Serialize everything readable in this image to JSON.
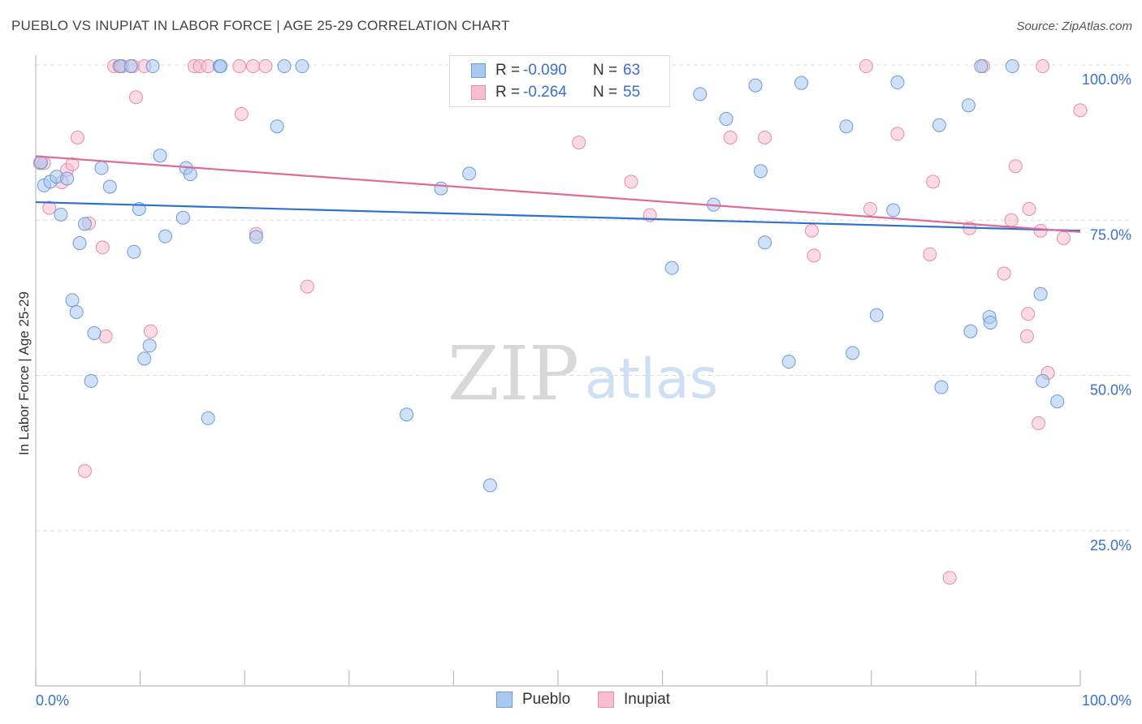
{
  "header": {
    "title": "PUEBLO VS INUPIAT IN LABOR FORCE | AGE 25-29 CORRELATION CHART",
    "source": "Source: ZipAtlas.com"
  },
  "legend": {
    "rows": [
      {
        "r_label": "R =",
        "r_value": "-0.090",
        "n_label": "N =",
        "n_value": "63"
      },
      {
        "r_label": "R =",
        "r_value": "-0.264",
        "n_label": "N =",
        "n_value": "55"
      }
    ]
  },
  "bottom_legend": [
    "Pueblo",
    "Inupiat"
  ],
  "watermark": {
    "zip": "ZIP",
    "atlas": "atlas"
  },
  "colors": {
    "pueblo_fill": "#a9c8f0",
    "pueblo_stroke": "#6a9ad8",
    "pueblo_line": "#2f72cc",
    "inupiat_fill": "#f6bed0",
    "inupiat_stroke": "#e88aa8",
    "inupiat_line": "#e06a96",
    "tick_label": "#3b6fd0",
    "grid": "#dddddd"
  },
  "chart_data": {
    "type": "scatter",
    "title": "PUEBLO VS INUPIAT IN LABOR FORCE | AGE 25-29 CORRELATION CHART",
    "xlabel": "",
    "ylabel": "In Labor Force | Age 25-29",
    "xlim": [
      0,
      100
    ],
    "ylim": [
      0,
      100
    ],
    "x_tick_labels": [
      "0.0%",
      "100.0%"
    ],
    "y_tick_labels": [
      "100.0%",
      "75.0%",
      "50.0%",
      "25.0%"
    ],
    "y_ticks": [
      100,
      75,
      50,
      25
    ],
    "grid": true,
    "legend_position": "top-center",
    "series": [
      {
        "name": "Pueblo",
        "r": -0.09,
        "n": 63,
        "trend": [
          [
            0,
            77.9
          ],
          [
            100,
            73.3
          ]
        ],
        "points": [
          [
            0.5,
            84.3
          ],
          [
            0.8,
            80.6
          ],
          [
            1.4,
            81.2
          ],
          [
            2.0,
            82.0
          ],
          [
            2.4,
            75.9
          ],
          [
            3.0,
            81.7
          ],
          [
            3.5,
            62.1
          ],
          [
            3.9,
            60.2
          ],
          [
            4.2,
            71.3
          ],
          [
            4.7,
            74.4
          ],
          [
            5.3,
            49.1
          ],
          [
            5.6,
            56.8
          ],
          [
            6.3,
            83.4
          ],
          [
            7.1,
            80.4
          ],
          [
            8.1,
            99.8
          ],
          [
            9.1,
            99.8
          ],
          [
            9.4,
            69.9
          ],
          [
            9.9,
            76.8
          ],
          [
            10.4,
            52.7
          ],
          [
            10.9,
            54.8
          ],
          [
            11.2,
            99.8
          ],
          [
            11.9,
            85.4
          ],
          [
            12.4,
            72.4
          ],
          [
            14.1,
            75.4
          ],
          [
            14.4,
            83.4
          ],
          [
            14.8,
            82.4
          ],
          [
            16.5,
            43.1
          ],
          [
            17.6,
            99.8
          ],
          [
            17.7,
            99.8
          ],
          [
            21.1,
            72.3
          ],
          [
            23.1,
            90.1
          ],
          [
            23.8,
            99.8
          ],
          [
            25.5,
            99.8
          ],
          [
            35.5,
            43.7
          ],
          [
            38.8,
            80.1
          ],
          [
            41.5,
            82.5
          ],
          [
            43.5,
            32.3
          ],
          [
            45.5,
            99.8
          ],
          [
            60.9,
            67.3
          ],
          [
            63.6,
            95.3
          ],
          [
            64.9,
            77.5
          ],
          [
            66.1,
            91.3
          ],
          [
            68.9,
            96.7
          ],
          [
            69.4,
            82.9
          ],
          [
            69.8,
            71.4
          ],
          [
            72.1,
            52.2
          ],
          [
            73.3,
            97.1
          ],
          [
            77.6,
            90.1
          ],
          [
            78.2,
            53.6
          ],
          [
            80.5,
            59.7
          ],
          [
            82.1,
            76.6
          ],
          [
            82.5,
            97.2
          ],
          [
            86.7,
            48.1
          ],
          [
            86.5,
            90.3
          ],
          [
            89.5,
            57.1
          ],
          [
            89.3,
            93.5
          ],
          [
            90.5,
            99.8
          ],
          [
            91.3,
            59.4
          ],
          [
            91.4,
            58.5
          ],
          [
            93.5,
            99.8
          ],
          [
            96.2,
            63.1
          ],
          [
            96.4,
            49.1
          ],
          [
            97.8,
            45.8
          ]
        ]
      },
      {
        "name": "Inupiat",
        "r": -0.264,
        "n": 55,
        "trend": [
          [
            0,
            85.3
          ],
          [
            100,
            73.1
          ]
        ],
        "points": [
          [
            0.4,
            84.2
          ],
          [
            0.8,
            84.2
          ],
          [
            1.3,
            77.0
          ],
          [
            2.5,
            81.1
          ],
          [
            3.0,
            83.1
          ],
          [
            3.5,
            84.0
          ],
          [
            4.0,
            88.3
          ],
          [
            4.7,
            34.6
          ],
          [
            5.1,
            74.5
          ],
          [
            6.4,
            70.6
          ],
          [
            6.7,
            56.3
          ],
          [
            7.5,
            99.8
          ],
          [
            8.0,
            99.8
          ],
          [
            8.3,
            99.8
          ],
          [
            9.3,
            99.8
          ],
          [
            9.6,
            94.8
          ],
          [
            10.4,
            99.8
          ],
          [
            11.0,
            57.1
          ],
          [
            15.2,
            99.8
          ],
          [
            15.7,
            99.8
          ],
          [
            16.5,
            99.8
          ],
          [
            19.5,
            99.8
          ],
          [
            19.7,
            92.1
          ],
          [
            20.8,
            99.8
          ],
          [
            21.1,
            72.8
          ],
          [
            22.0,
            99.8
          ],
          [
            26.0,
            64.3
          ],
          [
            52.0,
            87.5
          ],
          [
            56.5,
            99.8
          ],
          [
            57.0,
            81.2
          ],
          [
            58.8,
            75.8
          ],
          [
            66.5,
            88.3
          ],
          [
            69.8,
            88.3
          ],
          [
            74.3,
            73.3
          ],
          [
            74.5,
            69.3
          ],
          [
            79.5,
            99.8
          ],
          [
            79.9,
            76.8
          ],
          [
            82.5,
            88.9
          ],
          [
            85.6,
            69.5
          ],
          [
            85.9,
            81.2
          ],
          [
            87.5,
            17.4
          ],
          [
            89.4,
            73.7
          ],
          [
            90.7,
            99.8
          ],
          [
            92.7,
            66.4
          ],
          [
            93.4,
            75.0
          ],
          [
            93.8,
            83.7
          ],
          [
            94.9,
            56.3
          ],
          [
            95.0,
            59.9
          ],
          [
            95.1,
            76.8
          ],
          [
            96.0,
            42.3
          ],
          [
            96.2,
            73.3
          ],
          [
            96.9,
            50.4
          ],
          [
            96.4,
            99.8
          ],
          [
            98.4,
            72.1
          ],
          [
            100.0,
            92.7
          ]
        ]
      }
    ]
  }
}
